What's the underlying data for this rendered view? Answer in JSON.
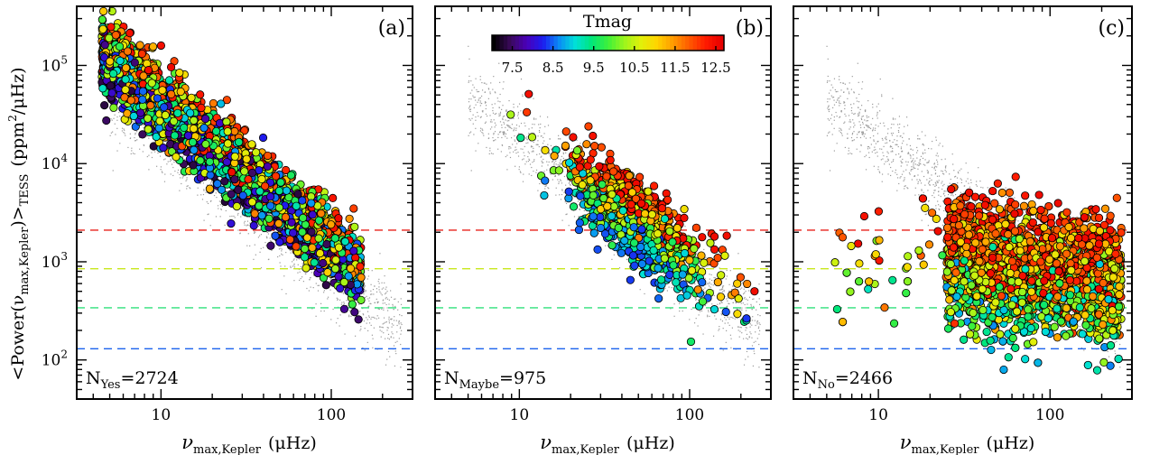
{
  "chart_data": {
    "type": "scatter",
    "x_scale": "log",
    "y_scale": "log",
    "xlim": [
      3.2,
      300
    ],
    "ylim": [
      40,
      400000
    ],
    "xlabel_main": "ν",
    "xlabel_sub": "max,Kepler",
    "xlabel_unit": "(μHz)",
    "ylabel_main": "<Power(ν",
    "ylabel_sub1": "max,Kepler",
    "ylabel_mid": ")>",
    "ylabel_sub2": "TESS",
    "ylabel_unit": "(ppm",
    "ylabel_sup": "2",
    "ylabel_end": "/μHz)",
    "x_ticks": [
      {
        "value": 10,
        "label": "10"
      },
      {
        "value": 100,
        "label": "100"
      }
    ],
    "y_ticks": [
      {
        "value": 100,
        "base": "10",
        "exp": "2"
      },
      {
        "value": 1000,
        "base": "10",
        "exp": "3"
      },
      {
        "value": 10000,
        "base": "10",
        "exp": "4"
      },
      {
        "value": 100000,
        "base": "10",
        "exp": "5"
      }
    ],
    "threshold_lines": [
      {
        "y": 2100,
        "color": "#e8221b"
      },
      {
        "y": 850,
        "color": "#c8e81c"
      },
      {
        "y": 340,
        "color": "#2fe07a"
      },
      {
        "y": 130,
        "color": "#1b62ee"
      }
    ],
    "colorbar": {
      "title": "Tmag",
      "range": [
        7,
        12.7
      ],
      "tick_values": [
        7.5,
        8.5,
        9.5,
        10.5,
        11.5,
        12.5
      ],
      "tick_labels": [
        "7.5",
        "8.5",
        "9.5",
        "10.5",
        "11.5",
        "12.5"
      ],
      "colors": [
        "#000000",
        "#3a0a5a",
        "#4b00b8",
        "#1c1cf0",
        "#0a8cf5",
        "#00e0d8",
        "#00e67a",
        "#3ef03a",
        "#9cf51c",
        "#e0f00a",
        "#ffd400",
        "#ff9a00",
        "#ff5a00",
        "#ff1a00",
        "#e60000"
      ]
    },
    "panels": [
      {
        "label": "(a)",
        "count_base": "N",
        "count_sub": "Yes",
        "count_value": "=2724",
        "n_points": 2724
      },
      {
        "label": "(b)",
        "count_base": "N",
        "count_sub": "Maybe",
        "count_value": "=975",
        "n_points": 975
      },
      {
        "label": "(c)",
        "count_base": "N",
        "count_sub": "No",
        "count_value": "=2466",
        "n_points": 2466
      }
    ]
  }
}
